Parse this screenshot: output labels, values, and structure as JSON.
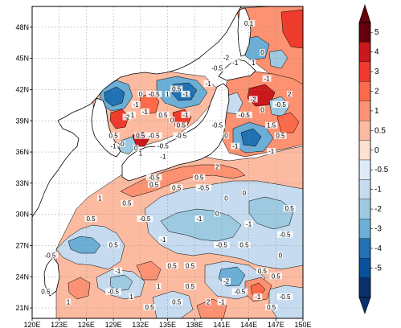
{
  "map": {
    "region": "Northwest Pacific",
    "lon_ticks": [
      "120E",
      "123E",
      "126E",
      "129E",
      "132E",
      "135E",
      "138E",
      "141E",
      "144E",
      "147E",
      "150E"
    ],
    "lat_ticks": [
      "21N",
      "24N",
      "27N",
      "30N",
      "33N",
      "36N",
      "39N",
      "42N",
      "45N",
      "48N"
    ],
    "lon_range": [
      120,
      150
    ],
    "lat_range": [
      20,
      50
    ],
    "gridlines": "dotted"
  },
  "colorbar": {
    "labels": [
      "5",
      "4",
      "3",
      "2",
      "1",
      "0.5",
      "0",
      "-0.5",
      "-1",
      "-2",
      "-3",
      "-4",
      "-5"
    ],
    "colors": [
      "#67000d",
      "#cb181d",
      "#ef3b2c",
      "#fb6a4a",
      "#fc9272",
      "#fcbba1",
      "#fee0d2",
      "#deebf7",
      "#c6dbef",
      "#9ecae1",
      "#6baed6",
      "#2171b5",
      "#08519c",
      "#08306b"
    ],
    "orientation": "vertical",
    "extend": "both"
  },
  "contour_labels": [
    {
      "text": "0.5",
      "lon": 121.5,
      "lat": 22.5
    },
    {
      "text": "1",
      "lon": 124,
      "lat": 21.5
    },
    {
      "text": "-0.5",
      "lon": 122,
      "lat": 26
    },
    {
      "text": "1",
      "lon": 131,
      "lat": 22
    },
    {
      "text": "-0.5",
      "lon": 129,
      "lat": 22.5
    },
    {
      "text": "0.5",
      "lon": 133,
      "lat": 21
    },
    {
      "text": "-1",
      "lon": 129.5,
      "lat": 24.5
    },
    {
      "text": "0.5",
      "lon": 126.5,
      "lat": 29.5
    },
    {
      "text": "0.5",
      "lon": 129,
      "lat": 27
    },
    {
      "text": "-0.5",
      "lon": 132.5,
      "lat": 29.5
    },
    {
      "text": "-1",
      "lon": 134.5,
      "lat": 27.5
    },
    {
      "text": "0.5",
      "lon": 135.5,
      "lat": 25
    },
    {
      "text": "0.5",
      "lon": 137.5,
      "lat": 25
    },
    {
      "text": "-0.5",
      "lon": 141,
      "lat": 27
    },
    {
      "text": "-1",
      "lon": 138.5,
      "lat": 29.5
    },
    {
      "text": "0",
      "lon": 140.5,
      "lat": 30
    },
    {
      "text": "-1",
      "lon": 144,
      "lat": 29
    },
    {
      "text": "0.5",
      "lon": 145.5,
      "lat": 24.5
    },
    {
      "text": "0.5",
      "lon": 143.5,
      "lat": 27
    },
    {
      "text": "-2",
      "lon": 141.5,
      "lat": 23.5
    },
    {
      "text": "-1",
      "lon": 145,
      "lat": 22
    },
    {
      "text": "-1",
      "lon": 141,
      "lat": 21.5
    },
    {
      "text": "-0.5",
      "lon": 143,
      "lat": 22.5
    },
    {
      "text": "-0.5",
      "lon": 148,
      "lat": 22
    },
    {
      "text": "0.5",
      "lon": 146.5,
      "lat": 21
    },
    {
      "text": "0.5",
      "lon": 136,
      "lat": 21.5
    },
    {
      "text": "0.5",
      "lon": 137.5,
      "lat": 23
    },
    {
      "text": "1",
      "lon": 134,
      "lat": 23
    },
    {
      "text": "2",
      "lon": 139.5,
      "lat": 21.5
    },
    {
      "text": "0.5",
      "lon": 147,
      "lat": 24
    },
    {
      "text": "-0.5",
      "lon": 148,
      "lat": 28
    },
    {
      "text": "0",
      "lon": 147.5,
      "lat": 26
    },
    {
      "text": "0.5",
      "lon": 148.5,
      "lat": 30.5
    },
    {
      "text": "0.5",
      "lon": 130.5,
      "lat": 31
    },
    {
      "text": "1",
      "lon": 127.5,
      "lat": 31.5
    },
    {
      "text": "1",
      "lon": 133.5,
      "lat": 33.2
    },
    {
      "text": "0.5",
      "lon": 136,
      "lat": 32.5
    },
    {
      "text": "0.5",
      "lon": 138.5,
      "lat": 33.5
    },
    {
      "text": "2",
      "lon": 140.5,
      "lat": 34.5
    },
    {
      "text": "0",
      "lon": 143.5,
      "lat": 32
    },
    {
      "text": "-0.5",
      "lon": 139,
      "lat": 32.5
    },
    {
      "text": "0",
      "lon": 141.5,
      "lat": 31.5
    },
    {
      "text": "-1",
      "lon": 142.5,
      "lat": 36.5
    },
    {
      "text": "0",
      "lon": 141.5,
      "lat": 37.5
    },
    {
      "text": "-0.5",
      "lon": 140.5,
      "lat": 38.5
    },
    {
      "text": "-1",
      "lon": 146.5,
      "lat": 36
    },
    {
      "text": "0.5",
      "lon": 147.5,
      "lat": 37.5
    },
    {
      "text": "1.5",
      "lon": 146.5,
      "lat": 38.5
    },
    {
      "text": "0",
      "lon": 145.5,
      "lat": 40
    },
    {
      "text": "-0.5",
      "lon": 143.5,
      "lat": 39.5
    },
    {
      "text": "2",
      "lon": 148.5,
      "lat": 41.5
    },
    {
      "text": "-2",
      "lon": 144.5,
      "lat": 41
    },
    {
      "text": "-1",
      "lon": 146,
      "lat": 43
    },
    {
      "text": "-0.5",
      "lon": 147.5,
      "lat": 40.5
    },
    {
      "text": "0",
      "lon": 145.5,
      "lat": 45.5
    },
    {
      "text": "-2",
      "lon": 141.5,
      "lat": 45
    },
    {
      "text": "-1",
      "lon": 142.5,
      "lat": 44.5
    },
    {
      "text": "1",
      "lon": 144.5,
      "lat": 44.5
    },
    {
      "text": "-0.5",
      "lon": 140.5,
      "lat": 44
    },
    {
      "text": "0.1",
      "lon": 144,
      "lat": 48.3
    },
    {
      "text": "-1",
      "lon": 139.5,
      "lat": 42.5
    },
    {
      "text": "-1",
      "lon": 137,
      "lat": 41.5
    },
    {
      "text": "0.5",
      "lon": 136,
      "lat": 42
    },
    {
      "text": "1",
      "lon": 135,
      "lat": 41.5
    },
    {
      "text": "-0.5",
      "lon": 133.5,
      "lat": 41.5
    },
    {
      "text": "0",
      "lon": 132,
      "lat": 41.5
    },
    {
      "text": "-1",
      "lon": 131.5,
      "lat": 40.5
    },
    {
      "text": "-1",
      "lon": 131,
      "lat": 39.5
    },
    {
      "text": "-1",
      "lon": 132.5,
      "lat": 39.8
    },
    {
      "text": "-2",
      "lon": 130.5,
      "lat": 39.3
    },
    {
      "text": "0.5",
      "lon": 134.5,
      "lat": 39.5
    },
    {
      "text": "0",
      "lon": 135.5,
      "lat": 39
    },
    {
      "text": "-1",
      "lon": 137,
      "lat": 39.5
    },
    {
      "text": "0.5",
      "lon": 136.5,
      "lat": 38.5
    },
    {
      "text": "0.5",
      "lon": 132,
      "lat": 37.5
    },
    {
      "text": "-0.5",
      "lon": 133.5,
      "lat": 37.5
    },
    {
      "text": "-0.5",
      "lon": 134.5,
      "lat": 36.5
    },
    {
      "text": "0.5",
      "lon": 129,
      "lat": 37.5
    },
    {
      "text": "-1",
      "lon": 129,
      "lat": 36.5
    },
    {
      "text": "0",
      "lon": 130,
      "lat": 36.7
    },
    {
      "text": "0",
      "lon": 131.5,
      "lat": 36.3
    },
    {
      "text": "-0.5",
      "lon": 136.5,
      "lat": 37.5
    },
    {
      "text": "-1",
      "lon": 134.5,
      "lat": 35.5
    },
    {
      "text": "1",
      "lon": 132,
      "lat": 35.8
    },
    {
      "text": "-0.5",
      "lon": 133.5,
      "lat": 33.5
    },
    {
      "text": "0.5",
      "lon": 133.5,
      "lat": 32.8
    }
  ]
}
